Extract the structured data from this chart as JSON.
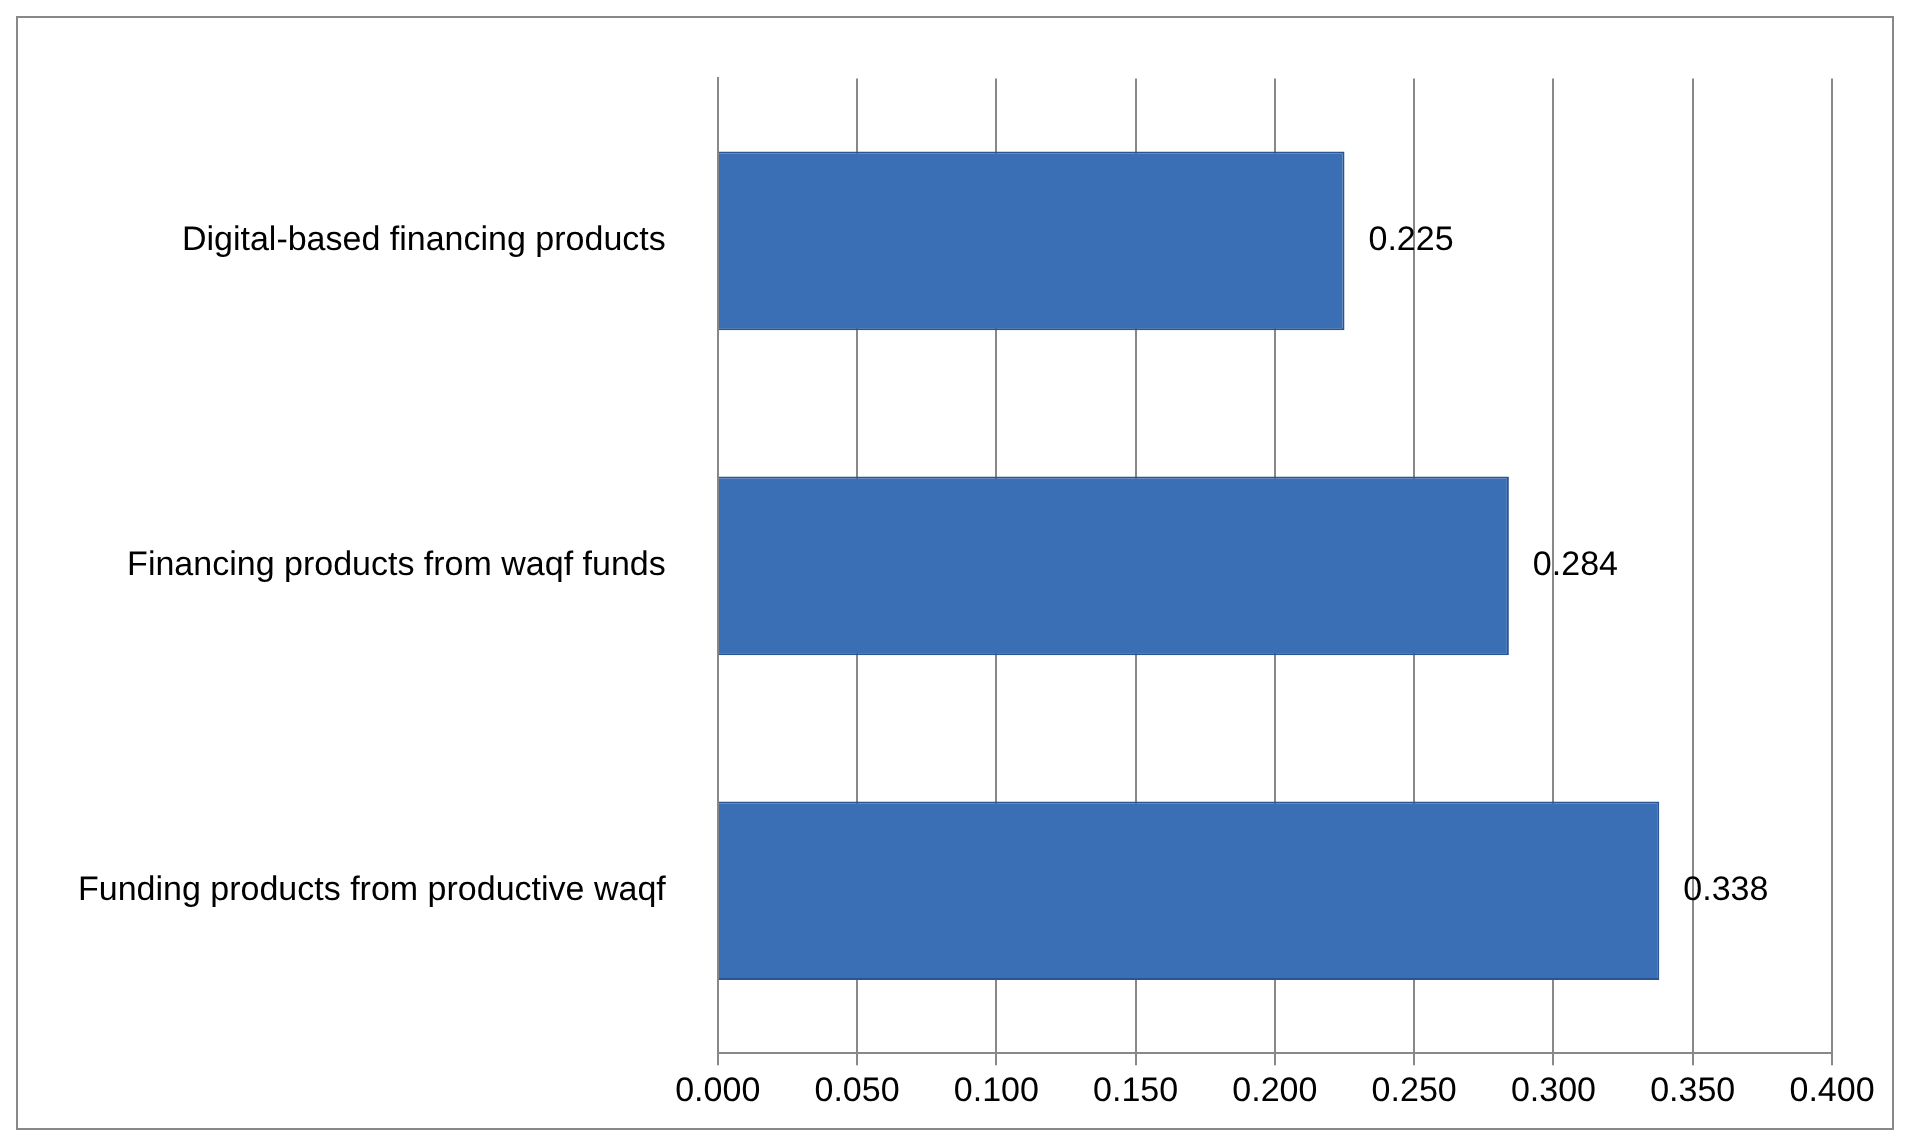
{
  "chart_data": {
    "type": "bar",
    "orientation": "horizontal",
    "categories": [
      "Digital-based financing products",
      "Financing products from waqf funds",
      "Funding products from productive waqf"
    ],
    "values": [
      0.225,
      0.284,
      0.338
    ],
    "color": "#3a6fb5",
    "xlim": [
      0,
      0.4
    ],
    "xticks": [
      {
        "value": 0,
        "label": "0.000"
      },
      {
        "value": 0.05,
        "label": "0.050"
      },
      {
        "value": 0.1,
        "label": "0.100"
      },
      {
        "value": 0.15,
        "label": "0.150"
      },
      {
        "value": 0.2,
        "label": "0.200"
      },
      {
        "value": 0.25,
        "label": "0.250"
      },
      {
        "value": 0.3,
        "label": "0.300"
      },
      {
        "value": 0.35,
        "label": "0.350"
      },
      {
        "value": 0.4,
        "label": "0.400"
      }
    ],
    "grid": "x",
    "data_labels": true,
    "legend": false
  }
}
